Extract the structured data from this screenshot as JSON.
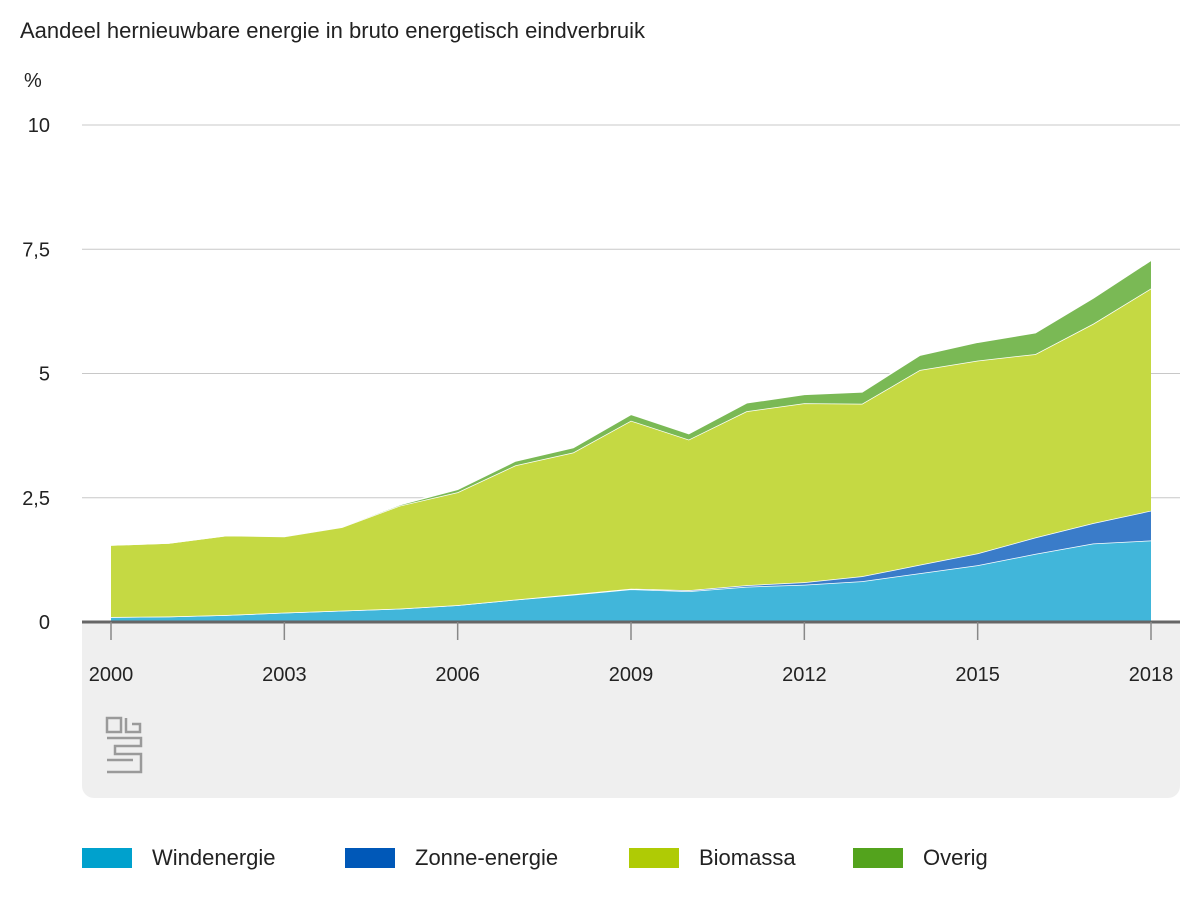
{
  "chart_data": {
    "type": "area",
    "stacked": true,
    "title": "Aandeel hernieuwbare energie in bruto energetisch eindverbruik",
    "unit_label": "%",
    "ylim": [
      0,
      10
    ],
    "y_ticks": [
      {
        "value": 0,
        "label": "0"
      },
      {
        "value": 2.5,
        "label": "2,5"
      },
      {
        "value": 5,
        "label": "5"
      },
      {
        "value": 7.5,
        "label": "7,5"
      },
      {
        "value": 10,
        "label": "10"
      }
    ],
    "x": [
      2000,
      2001,
      2002,
      2003,
      2004,
      2005,
      2006,
      2007,
      2008,
      2009,
      2010,
      2011,
      2012,
      2013,
      2014,
      2015,
      2016,
      2017,
      2018
    ],
    "x_tick_labels": [
      "2000",
      "2003",
      "2006",
      "2009",
      "2012",
      "2015",
      "2018"
    ],
    "grid": true,
    "legend_position": "bottom",
    "series": [
      {
        "name": "Windenergie",
        "color": "#00a1cd",
        "values": [
          0.1,
          0.11,
          0.14,
          0.19,
          0.23,
          0.27,
          0.34,
          0.45,
          0.55,
          0.66,
          0.62,
          0.71,
          0.75,
          0.82,
          0.98,
          1.14,
          1.37,
          1.58,
          1.64
        ]
      },
      {
        "name": "Zonne-energie",
        "color": "#0058b8",
        "values": [
          0.0,
          0.0,
          0.0,
          0.0,
          0.0,
          0.0,
          0.0,
          0.0,
          0.01,
          0.01,
          0.02,
          0.03,
          0.05,
          0.1,
          0.17,
          0.24,
          0.33,
          0.41,
          0.6
        ]
      },
      {
        "name": "Biomassa",
        "color": "#afcb05",
        "values": [
          1.45,
          1.48,
          1.6,
          1.53,
          1.68,
          2.07,
          2.27,
          2.7,
          2.85,
          3.38,
          3.03,
          3.5,
          3.6,
          3.47,
          3.92,
          3.88,
          3.69,
          4.01,
          4.47
        ]
      },
      {
        "name": "Overig",
        "color": "#53a31d",
        "values": [
          0.0,
          0.0,
          0.0,
          0.01,
          0.01,
          0.02,
          0.06,
          0.09,
          0.1,
          0.13,
          0.12,
          0.17,
          0.18,
          0.24,
          0.3,
          0.37,
          0.43,
          0.52,
          0.57
        ]
      }
    ]
  },
  "legend": {
    "items": [
      {
        "label": "Windenergie",
        "color": "#00a1cd"
      },
      {
        "label": "Zonne-energie",
        "color": "#0058b8"
      },
      {
        "label": "Biomassa",
        "color": "#afcb05"
      },
      {
        "label": "Overig",
        "color": "#53a31d"
      }
    ]
  }
}
